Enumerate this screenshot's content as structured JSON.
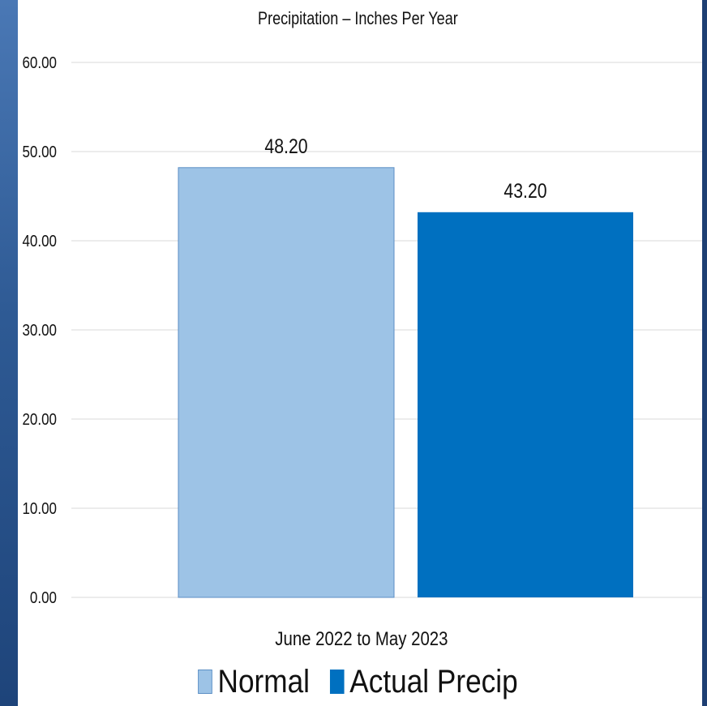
{
  "chart_data": {
    "type": "bar",
    "title": "Precipitation – Inches Per Year",
    "categories": [
      "June 2022 to May 2023"
    ],
    "series": [
      {
        "name": "Normal",
        "values": [
          48.2
        ],
        "color": "#9dc3e6",
        "label": "48.20"
      },
      {
        "name": "Actual Precip",
        "values": [
          43.2
        ],
        "color": "#0070c0",
        "label": "43.20"
      }
    ],
    "yticks": [
      "0.00",
      "10.00",
      "20.00",
      "30.00",
      "40.00",
      "50.00",
      "60.00"
    ],
    "ylim": [
      0,
      60
    ],
    "grid": true,
    "legend": "bottom",
    "xlabel": "",
    "ylabel": ""
  }
}
